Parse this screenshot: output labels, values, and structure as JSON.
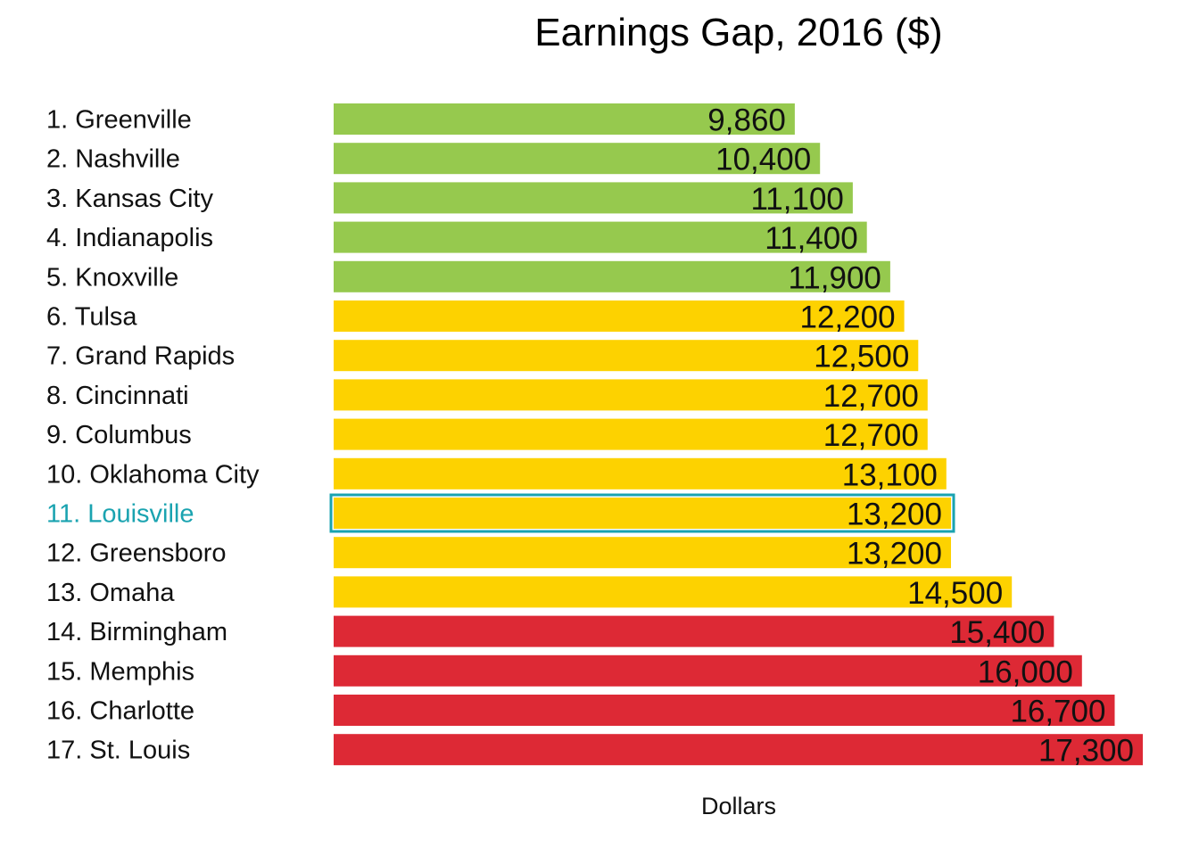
{
  "chart_data": {
    "type": "bar",
    "orientation": "horizontal",
    "title": "Earnings Gap, 2016 ($)",
    "xlabel": "Dollars",
    "ylabel": "",
    "xlim": [
      0,
      17300
    ],
    "grid": false,
    "legend": "none",
    "highlight_index": 10,
    "highlight_color": "#1AA3B0",
    "categories": [
      "1. Greenville",
      "2. Nashville",
      "3. Kansas City",
      "4. Indianapolis",
      "5. Knoxville",
      "6. Tulsa",
      "7. Grand Rapids",
      "8. Cincinnati",
      "9. Columbus",
      "10. Oklahoma City",
      "11. Louisville",
      "12. Greensboro",
      "13. Omaha",
      "14. Birmingham",
      "15. Memphis",
      "16. Charlotte",
      "17. St. Louis"
    ],
    "values": [
      9860,
      10400,
      11100,
      11400,
      11900,
      12200,
      12500,
      12700,
      12700,
      13100,
      13200,
      13200,
      14500,
      15400,
      16000,
      16700,
      17300
    ],
    "value_labels": [
      "9,860",
      "10,400",
      "11,100",
      "11,400",
      "11,900",
      "12,200",
      "12,500",
      "12,700",
      "12,700",
      "13,100",
      "13,200",
      "13,200",
      "14,500",
      "15,400",
      "16,000",
      "16,700",
      "17,300"
    ],
    "bar_colors": [
      "#96C94E",
      "#96C94E",
      "#96C94E",
      "#96C94E",
      "#96C94E",
      "#FDD200",
      "#FDD200",
      "#FDD200",
      "#FDD200",
      "#FDD200",
      "#FDD200",
      "#FDD200",
      "#FDD200",
      "#DD2935",
      "#DD2935",
      "#DD2935",
      "#DD2935"
    ],
    "label_color": "#111111"
  }
}
